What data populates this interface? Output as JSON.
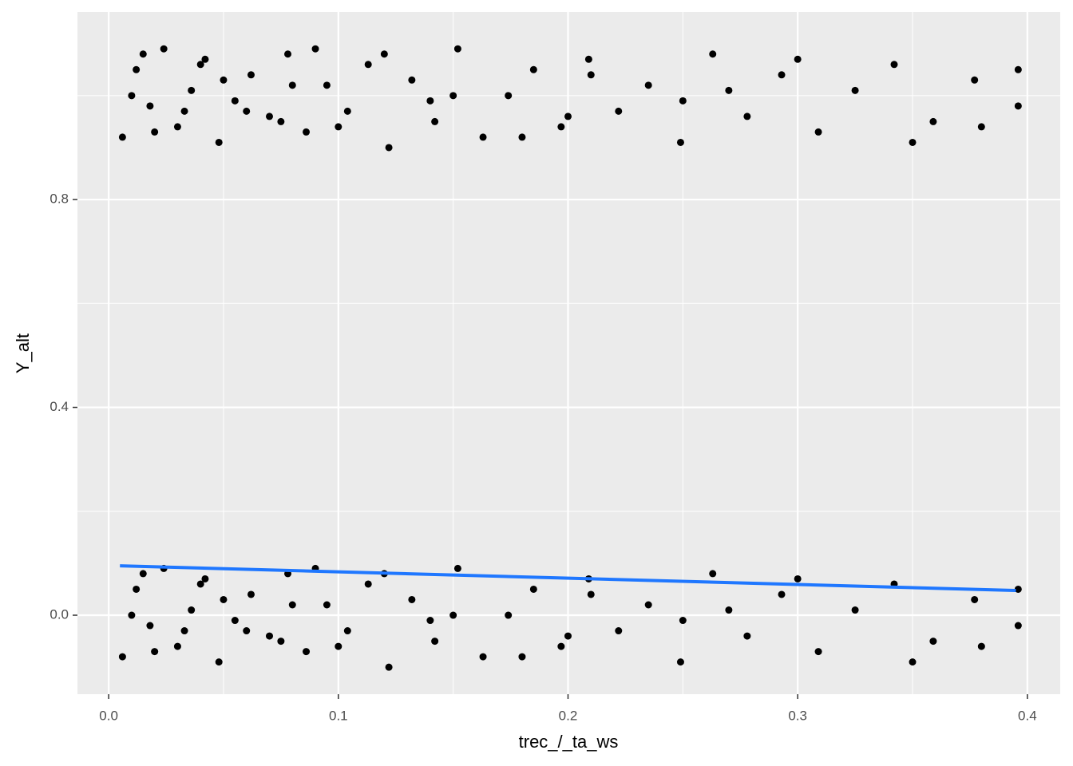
{
  "chart_data": {
    "type": "scatter",
    "x_label": "trec_/_ta_ws",
    "y_label": "Y_alt",
    "xlim": [
      -0.0136,
      0.4143
    ],
    "ylim": [
      -0.152,
      1.161
    ],
    "xticks": [
      {
        "value": 0,
        "label": "0.0"
      },
      0.1,
      0.2,
      0.3,
      0.4
    ],
    "yticks": [
      {
        "value": 0,
        "label": "0.0"
      },
      0.4,
      0.8
    ],
    "x_minor_grid": [
      0.05,
      0.15,
      0.25,
      0.35
    ],
    "y_minor_grid": [
      0.2,
      0.6,
      1.0
    ],
    "grid": true,
    "series": [
      {
        "kind": "points",
        "color": "#000000",
        "x": [
          0.006,
          0.012,
          0.018,
          0.024,
          0.03,
          0.036,
          0.042,
          0.048,
          0.055,
          0.062,
          0.07,
          0.078,
          0.086,
          0.095,
          0.104,
          0.113,
          0.122,
          0.132,
          0.142,
          0.152,
          0.163,
          0.174,
          0.185,
          0.197,
          0.209,
          0.222,
          0.235,
          0.249,
          0.263,
          0.278,
          0.293,
          0.309,
          0.325,
          0.342,
          0.359,
          0.377,
          0.396,
          0.01,
          0.02,
          0.04,
          0.06,
          0.08,
          0.1,
          0.12,
          0.15,
          0.18,
          0.21,
          0.25,
          0.3,
          0.35,
          0.396,
          0.015,
          0.033,
          0.05,
          0.075,
          0.09,
          0.14,
          0.2,
          0.27,
          0.38
        ],
        "y": [
          0.92,
          1.05,
          0.98,
          1.09,
          0.94,
          1.01,
          1.07,
          0.91,
          0.99,
          1.04,
          0.96,
          1.08,
          0.93,
          1.02,
          0.97,
          1.06,
          0.9,
          1.03,
          0.95,
          1.09,
          0.92,
          1.0,
          1.05,
          0.94,
          1.07,
          0.97,
          1.02,
          0.91,
          1.08,
          0.96,
          1.04,
          0.93,
          1.01,
          1.06,
          0.95,
          1.03,
          0.98,
          1.0,
          0.93,
          1.06,
          0.97,
          1.02,
          0.94,
          1.08,
          1.0,
          0.92,
          1.04,
          0.99,
          1.07,
          0.91,
          1.05,
          1.08,
          0.97,
          1.03,
          0.95,
          1.09,
          0.99,
          0.96,
          1.01,
          0.94
        ]
      },
      {
        "kind": "points",
        "color": "#000000",
        "x": [
          0.006,
          0.012,
          0.018,
          0.024,
          0.03,
          0.036,
          0.042,
          0.048,
          0.055,
          0.062,
          0.07,
          0.078,
          0.086,
          0.095,
          0.104,
          0.113,
          0.122,
          0.132,
          0.142,
          0.152,
          0.163,
          0.174,
          0.185,
          0.197,
          0.209,
          0.222,
          0.235,
          0.249,
          0.263,
          0.278,
          0.293,
          0.309,
          0.325,
          0.342,
          0.359,
          0.377,
          0.396,
          0.01,
          0.02,
          0.04,
          0.06,
          0.08,
          0.1,
          0.12,
          0.15,
          0.18,
          0.21,
          0.25,
          0.3,
          0.35,
          0.396,
          0.015,
          0.033,
          0.05,
          0.075,
          0.09,
          0.14,
          0.2,
          0.27,
          0.38
        ],
        "y": [
          -0.08,
          0.05,
          -0.02,
          0.09,
          -0.06,
          0.01,
          0.07,
          -0.09,
          -0.01,
          0.04,
          -0.04,
          0.08,
          -0.07,
          0.02,
          -0.03,
          0.06,
          -0.1,
          0.03,
          -0.05,
          0.09,
          -0.08,
          0.0,
          0.05,
          -0.06,
          0.07,
          -0.03,
          0.02,
          -0.09,
          0.08,
          -0.04,
          0.04,
          -0.07,
          0.01,
          0.06,
          -0.05,
          0.03,
          -0.02,
          0.0,
          -0.07,
          0.06,
          -0.03,
          0.02,
          -0.06,
          0.08,
          0.0,
          -0.08,
          0.04,
          -0.01,
          0.07,
          -0.09,
          0.05,
          0.08,
          -0.03,
          0.03,
          -0.05,
          0.09,
          -0.01,
          -0.04,
          0.01,
          -0.06
        ]
      },
      {
        "kind": "line",
        "color": "#1f77ff",
        "x": [
          0.0049,
          0.395
        ],
        "y": [
          0.095,
          0.0476
        ]
      }
    ]
  }
}
